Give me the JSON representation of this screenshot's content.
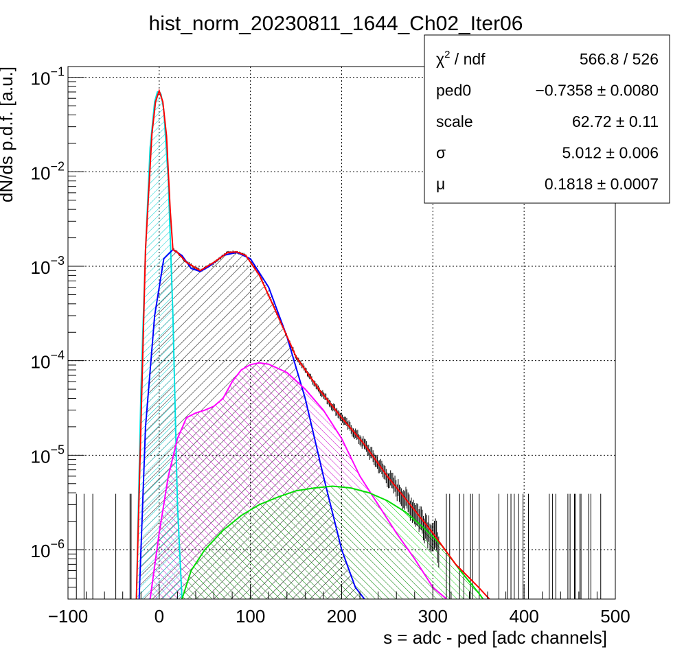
{
  "chart_data": {
    "type": "line",
    "title": "hist_norm_20230811_1644_Ch02_Iter06",
    "xlabel": "s = adc - ped [adc channels]",
    "ylabel": "dN/ds p.d.f. [a.u.]",
    "xlim": [
      -100,
      500
    ],
    "ylim": [
      3e-07,
      0.13
    ],
    "yscale": "log",
    "grid": true,
    "x_ticks": [
      -100,
      0,
      100,
      200,
      300,
      400,
      500
    ],
    "x_tick_labels": [
      "−100",
      "0",
      "100",
      "200",
      "300",
      "400",
      "500"
    ],
    "y_ticks": [
      {
        "value": 1e-06,
        "base": "10",
        "exp": "−6"
      },
      {
        "value": 1e-05,
        "base": "10",
        "exp": "−5"
      },
      {
        "value": 0.0001,
        "base": "10",
        "exp": "−4"
      },
      {
        "value": 0.001,
        "base": "10",
        "exp": "−3"
      },
      {
        "value": 0.01,
        "base": "10",
        "exp": "−2"
      },
      {
        "value": 0.1,
        "base": "10",
        "exp": "−1"
      }
    ],
    "series": [
      {
        "color": "#ff0000",
        "x": [
          -25,
          -15,
          -8,
          -4,
          0,
          4,
          8,
          12,
          15,
          20,
          30,
          45,
          60,
          75,
          85,
          95,
          110,
          130,
          150,
          175,
          200,
          225,
          250,
          275,
          300,
          325,
          350,
          362
        ],
        "y": [
          3e-07,
          0.0015,
          0.025,
          0.055,
          0.072,
          0.055,
          0.024,
          0.004,
          0.0015,
          0.0014,
          0.0011,
          0.0009,
          0.0011,
          0.0014,
          0.00142,
          0.0013,
          0.0008,
          0.0003,
          0.00011,
          5e-05,
          2.5e-05,
          1.3e-05,
          6e-06,
          3e-06,
          1.5e-06,
          7e-07,
          4e-07,
          3e-07
        ]
      },
      {
        "color": "#00e0e0",
        "x": [
          -25,
          -20,
          -15,
          -10,
          -5,
          -2,
          0,
          2,
          5,
          10,
          15,
          20,
          25
        ],
        "y": [
          3e-07,
          5e-05,
          0.0015,
          0.018,
          0.055,
          0.07,
          0.071,
          0.066,
          0.045,
          0.008,
          0.0003,
          3e-06,
          3e-07
        ]
      },
      {
        "color": "#0000ff",
        "x": [
          -22,
          -15,
          -5,
          5,
          15,
          25,
          35,
          45,
          55,
          70,
          85,
          100,
          120,
          140,
          160,
          180,
          200,
          215,
          225
        ],
        "y": [
          3e-07,
          2e-05,
          0.0003,
          0.0012,
          0.0015,
          0.0013,
          0.00095,
          0.00088,
          0.001,
          0.0013,
          0.0014,
          0.0012,
          0.0006,
          0.00018,
          4e-05,
          6e-06,
          1e-06,
          4e-07,
          3e-07
        ]
      },
      {
        "color": "#ff00ff",
        "x": [
          -10,
          0,
          10,
          20,
          30,
          40,
          50,
          60,
          70,
          80,
          90,
          100,
          110,
          120,
          140,
          160,
          180,
          200,
          220,
          240,
          260,
          280,
          300,
          315
        ],
        "y": [
          3e-07,
          1.5e-06,
          6e-06,
          1.5e-05,
          2.5e-05,
          2.8e-05,
          3e-05,
          3.3e-05,
          4e-05,
          6e-05,
          8e-05,
          9.1e-05,
          9.5e-05,
          9.2e-05,
          7.5e-05,
          5e-05,
          3e-05,
          1.5e-05,
          6e-06,
          3e-06,
          1.5e-06,
          8e-07,
          4e-07,
          3e-07
        ]
      },
      {
        "color": "#00dd00",
        "x": [
          25,
          35,
          50,
          70,
          90,
          110,
          130,
          150,
          170,
          190,
          210,
          230,
          250,
          270,
          290,
          310,
          330,
          350,
          355
        ],
        "y": [
          3e-07,
          6e-07,
          1e-06,
          1.6e-06,
          2.3e-06,
          3e-06,
          3.6e-06,
          4.2e-06,
          4.5e-06,
          4.7e-06,
          4.5e-06,
          4e-06,
          3.3e-06,
          2.5e-06,
          1.7e-06,
          1.1e-06,
          6e-07,
          3.5e-07,
          3e-07
        ]
      }
    ],
    "stats_box": {
      "rows": [
        {
          "sym": "χ",
          "sup": "2",
          "rest": " / ndf",
          "value": "566.8 / 526"
        },
        {
          "label": "ped0",
          "value": "−0.7358 ± 0.0080"
        },
        {
          "label": "scale",
          "value": "62.72 ± 0.11"
        },
        {
          "label": "σ",
          "value": "5.012 ± 0.006"
        },
        {
          "label": "μ",
          "value": "0.1818 ± 0.0007"
        }
      ]
    }
  }
}
